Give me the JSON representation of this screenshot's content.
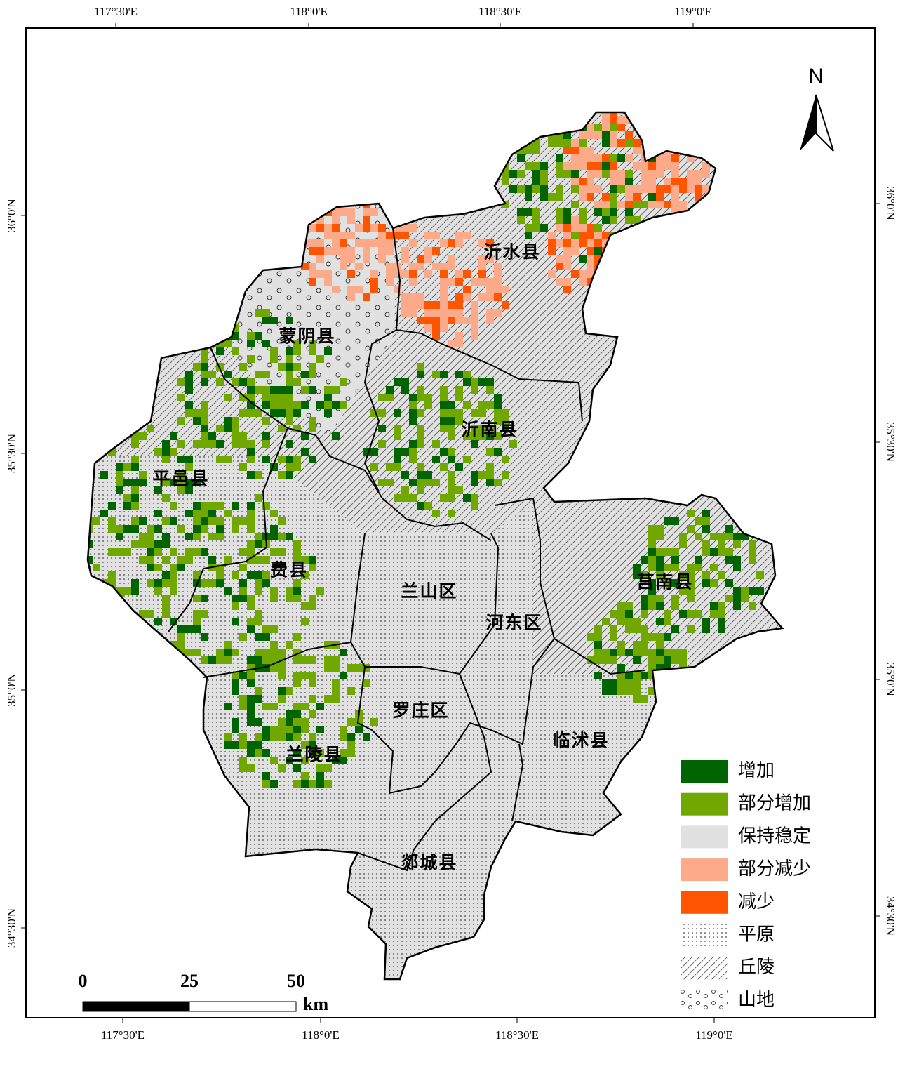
{
  "north_arrow": "N",
  "top_labels": [
    "117°30'E",
    "118°0'E",
    "118°30'E",
    "119°0'E"
  ],
  "bottom_labels": [
    "117°30'E",
    "118°0'E",
    "118°30'E",
    "119°0'E"
  ],
  "left_labels": [
    "36°0'N",
    "35°30'N",
    "35°0'N",
    "34°30'N"
  ],
  "right_labels": [
    "36°0'N",
    "35°30'N",
    "35°0'N",
    "34°30'N"
  ],
  "regions": [
    "沂水县",
    "蒙阴县",
    "沂南县",
    "平邑县",
    "费县",
    "兰山区",
    "河东区",
    "莒南县",
    "罗庄区",
    "临沭县",
    "兰陵县",
    "郯城县"
  ],
  "legend": [
    "增加",
    "部分增加",
    "保持稳定",
    "部分减少",
    "减少",
    "平原",
    "丘陵",
    "山地"
  ],
  "scale_bar": {
    "labels": [
      "0",
      "25",
      "50"
    ],
    "unit": "km"
  }
}
